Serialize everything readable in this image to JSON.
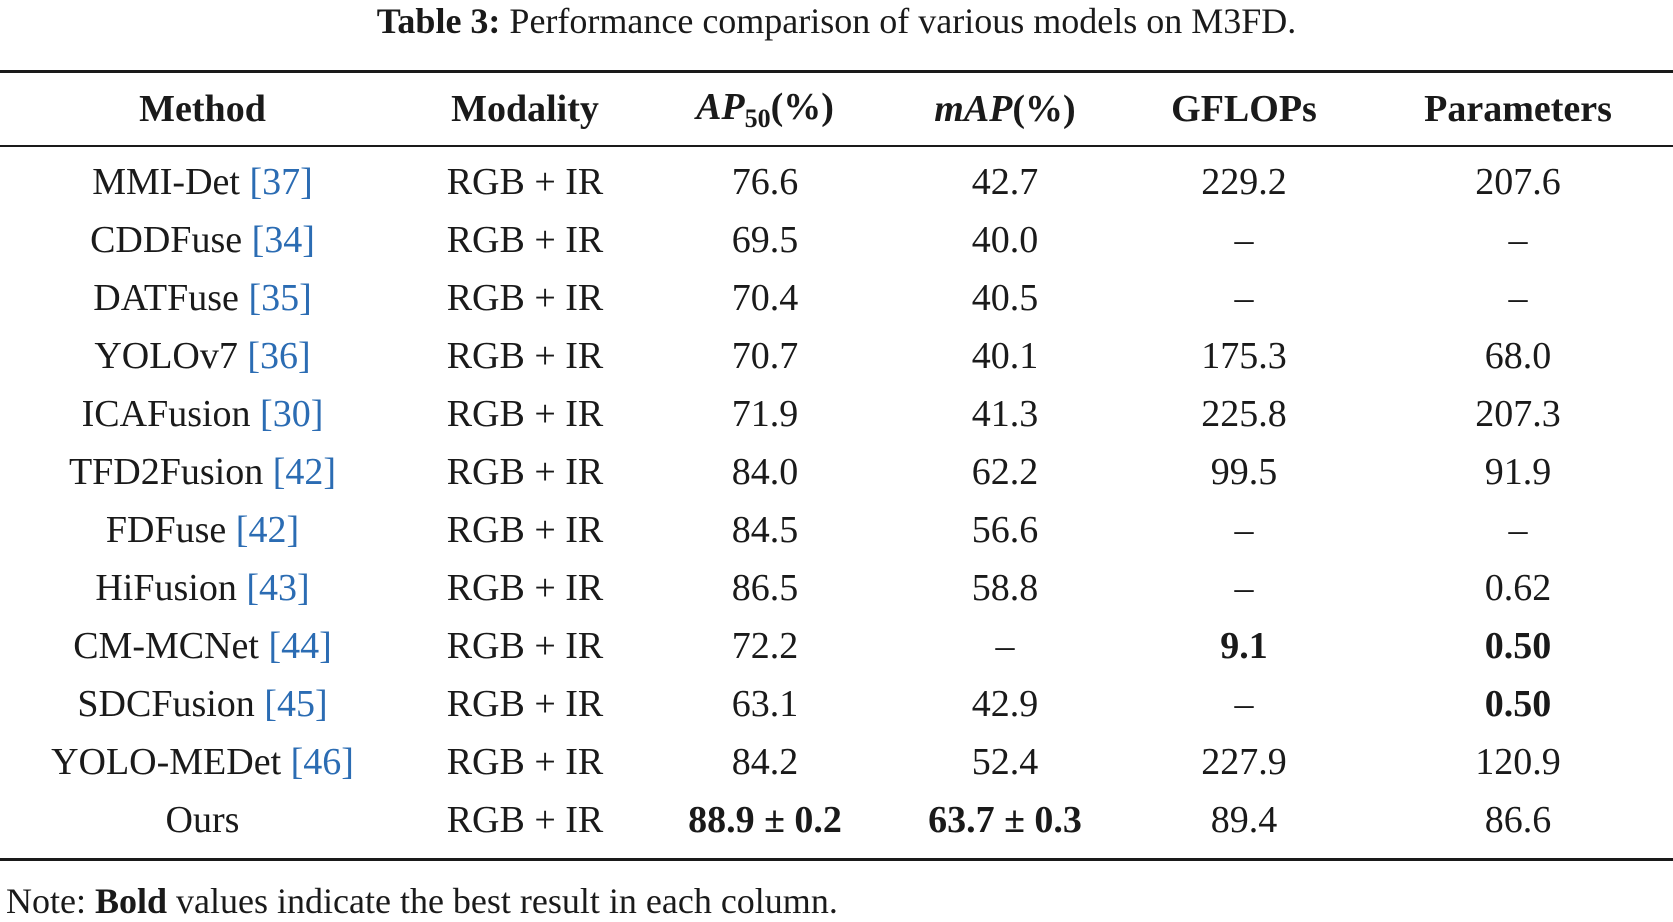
{
  "caption": {
    "lead": "Table 3:",
    "text": "Performance comparison of various models on M3FD."
  },
  "headers": {
    "method": "Method",
    "modality": "Modality",
    "ap50_main": "AP",
    "ap50_sub": "50",
    "ap50_unit": "(%)",
    "map_main": "mAP",
    "map_unit": "(%)",
    "gflops": "GFLOPs",
    "params": "Parameters"
  },
  "rows": [
    {
      "name": "MMI-Det",
      "ref": "37",
      "modality": "RGB + IR",
      "ap50": "76.6",
      "map": "42.7",
      "gflops": "229.2",
      "params": "207.6"
    },
    {
      "name": "CDDFuse",
      "ref": "34",
      "modality": "RGB + IR",
      "ap50": "69.5",
      "map": "40.0",
      "gflops": "–",
      "params": "–"
    },
    {
      "name": "DATFuse",
      "ref": "35",
      "modality": "RGB + IR",
      "ap50": "70.4",
      "map": "40.5",
      "gflops": "–",
      "params": "–"
    },
    {
      "name": "YOLOv7",
      "ref": "36",
      "modality": "RGB + IR",
      "ap50": "70.7",
      "map": "40.1",
      "gflops": "175.3",
      "params": "68.0"
    },
    {
      "name": "ICAFusion",
      "ref": "30",
      "modality": "RGB + IR",
      "ap50": "71.9",
      "map": "41.3",
      "gflops": "225.8",
      "params": "207.3"
    },
    {
      "name": "TFD2Fusion",
      "ref": "42",
      "modality": "RGB + IR",
      "ap50": "84.0",
      "map": "62.2",
      "gflops": "99.5",
      "params": "91.9"
    },
    {
      "name": "FDFuse",
      "ref": "42",
      "modality": "RGB + IR",
      "ap50": "84.5",
      "map": "56.6",
      "gflops": "–",
      "params": "–"
    },
    {
      "name": "HiFusion",
      "ref": "43",
      "modality": "RGB + IR",
      "ap50": "86.5",
      "map": "58.8",
      "gflops": "–",
      "params": "0.62"
    },
    {
      "name": "CM-MCNet",
      "ref": "44",
      "modality": "RGB + IR",
      "ap50": "72.2",
      "map": "–",
      "gflops": "9.1",
      "params": "0.50"
    },
    {
      "name": "SDCFusion",
      "ref": "45",
      "modality": "RGB + IR",
      "ap50": "63.1",
      "map": "42.9",
      "gflops": "–",
      "params": "0.50"
    },
    {
      "name": "YOLO-MEDet",
      "ref": "46",
      "modality": "RGB + IR",
      "ap50": "84.2",
      "map": "52.4",
      "gflops": "227.9",
      "params": "120.9"
    },
    {
      "name": "Ours",
      "ref": "",
      "modality": "RGB + IR",
      "ap50": "88.9 ± 0.2",
      "map": "63.7 ± 0.3",
      "gflops": "89.4",
      "params": "86.6"
    }
  ],
  "note": {
    "prefix": "Note:",
    "bold": "Bold",
    "rest": "values indicate the best result in each column."
  }
}
